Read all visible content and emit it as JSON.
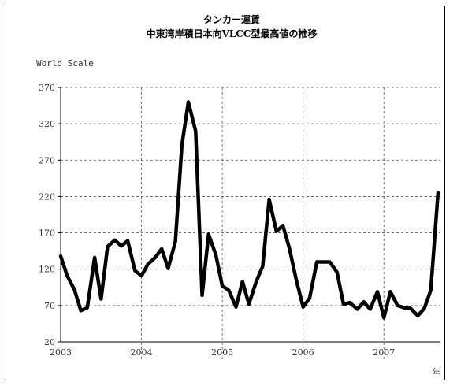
{
  "chart_data": {
    "type": "line",
    "title": "タンカー運賃",
    "subtitle": "中東湾岸積日本向VLCC型最高値の推移",
    "ylabel": "World Scale",
    "xlabel": "年",
    "ylim": [
      20,
      370
    ],
    "yticks": [
      20,
      70,
      120,
      170,
      220,
      270,
      320,
      370
    ],
    "xlim": [
      2003,
      2007.7
    ],
    "xticks": [
      2003,
      2004,
      2005,
      2006,
      2007
    ],
    "xtick_labels": [
      "2003",
      "2004",
      "2005",
      "2006",
      "2007"
    ],
    "ytick_labels": [
      "20",
      "70",
      "120",
      "170",
      "220",
      "270",
      "320",
      "370"
    ],
    "grid": true,
    "line_color": "#000000",
    "series": [
      {
        "x": [
          2003.0,
          2003.08,
          2003.17,
          2003.25,
          2003.33,
          2003.42,
          2003.5,
          2003.58,
          2003.67,
          2003.75,
          2003.83,
          2003.92,
          2004.0,
          2004.08,
          2004.17,
          2004.25,
          2004.33,
          2004.42,
          2004.5,
          2004.58,
          2004.67,
          2004.75,
          2004.83,
          2004.92,
          2005.0,
          2005.08,
          2005.17,
          2005.25,
          2005.33,
          2005.42,
          2005.5,
          2005.58,
          2005.67,
          2005.75,
          2005.83,
          2005.92,
          2006.0,
          2006.08,
          2006.17,
          2006.25,
          2006.33,
          2006.42,
          2006.5,
          2006.58,
          2006.67,
          2006.75,
          2006.83,
          2006.92,
          2007.0,
          2007.08,
          2007.17,
          2007.25,
          2007.33,
          2007.42,
          2007.5,
          2007.58,
          2007.67
        ],
        "values": [
          138,
          111,
          92,
          63,
          67,
          136,
          79,
          151,
          160,
          152,
          159,
          118,
          111,
          127,
          136,
          148,
          121,
          158,
          290,
          350,
          310,
          84,
          168,
          140,
          97,
          91,
          68,
          103,
          72,
          103,
          124,
          216,
          172,
          180,
          149,
          103,
          68,
          80,
          130,
          130,
          130,
          116,
          72,
          74,
          65,
          75,
          65,
          89,
          53,
          89,
          70,
          67,
          66,
          56,
          66,
          91,
          225
        ]
      }
    ]
  }
}
